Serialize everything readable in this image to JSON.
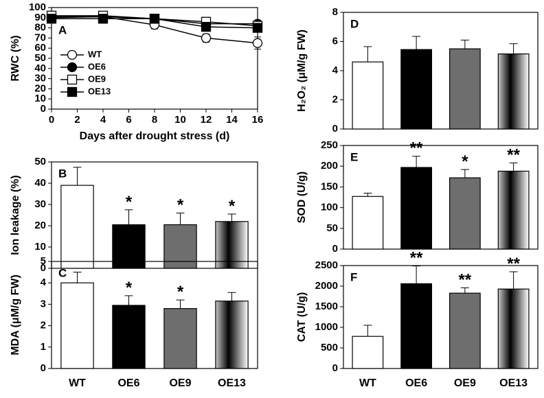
{
  "chart_data": [
    {
      "type": "line",
      "label": "A",
      "ylabel": "RWC (%)",
      "xlabel": "Days after drought stress (d)",
      "x": [
        0,
        4,
        8,
        12,
        16
      ],
      "xlim": [
        0,
        16
      ],
      "xticks": [
        0,
        2,
        4,
        6,
        8,
        10,
        12,
        14,
        16
      ],
      "ylim": [
        0,
        100
      ],
      "yticks": [
        0,
        10,
        20,
        30,
        40,
        50,
        60,
        70,
        80,
        90,
        100
      ],
      "series": [
        {
          "name": "WT",
          "color": "#000000",
          "marker": "circle",
          "filled": false,
          "values": [
            91,
            91,
            83,
            70,
            65
          ],
          "errors": [
            2,
            2,
            4,
            4,
            6
          ]
        },
        {
          "name": "OE6",
          "color": "#000000",
          "marker": "circle",
          "filled": true,
          "values": [
            90,
            91,
            89,
            84,
            84
          ],
          "errors": [
            2,
            2,
            2,
            3,
            3
          ]
        },
        {
          "name": "OE9",
          "color": "#000000",
          "marker": "square",
          "filled": false,
          "values": [
            92,
            92,
            89,
            86,
            82
          ],
          "errors": [
            2,
            2,
            2,
            3,
            3
          ]
        },
        {
          "name": "OE13",
          "color": "#000000",
          "marker": "square",
          "filled": true,
          "values": [
            89,
            89,
            89,
            81,
            80
          ],
          "errors": [
            2,
            2,
            3,
            3,
            3
          ]
        }
      ]
    },
    {
      "type": "bar",
      "label": "B",
      "ylabel": "Ion leakage (%)",
      "categories": [
        null,
        null,
        null,
        null
      ],
      "values": [
        39,
        20.5,
        20.5,
        22
      ],
      "errors": [
        8.5,
        7,
        5.5,
        3.5
      ],
      "significance": [
        null,
        "*",
        "*",
        "*"
      ],
      "colors": [
        "#ffffff",
        "#000000",
        "#6e6e6e",
        "gradient"
      ],
      "ylim": [
        0,
        50
      ],
      "yticks": [
        0,
        10,
        20,
        30,
        40,
        50
      ]
    },
    {
      "type": "bar",
      "label": "C",
      "ylabel": "MDA (μM/g FW)",
      "categories": [
        "WT",
        "OE6",
        "OE9",
        "OE13"
      ],
      "values": [
        4.0,
        2.95,
        2.8,
        3.15
      ],
      "errors": [
        0.5,
        0.45,
        0.4,
        0.4
      ],
      "significance": [
        null,
        "*",
        "*",
        null
      ],
      "colors": [
        "#ffffff",
        "#000000",
        "#6e6e6e",
        "gradient"
      ],
      "ylim": [
        0,
        5
      ],
      "yticks": [
        0,
        1,
        2,
        3,
        4,
        5
      ]
    },
    {
      "type": "bar",
      "label": "D",
      "ylabel": "H₂O₂ (μM/g FW)",
      "categories": [
        null,
        null,
        null,
        null
      ],
      "values": [
        4.6,
        5.45,
        5.5,
        5.15
      ],
      "errors": [
        1.05,
        0.9,
        0.6,
        0.7
      ],
      "significance": [
        null,
        null,
        null,
        null
      ],
      "colors": [
        "#ffffff",
        "#000000",
        "#6e6e6e",
        "gradient"
      ],
      "ylim": [
        0,
        8
      ],
      "yticks": [
        0,
        2,
        4,
        6,
        8
      ]
    },
    {
      "type": "bar",
      "label": "E",
      "ylabel": "SOD (U/g)",
      "categories": [
        null,
        null,
        null,
        null
      ],
      "values": [
        127,
        197,
        172,
        188
      ],
      "errors": [
        8,
        27,
        20,
        20
      ],
      "significance": [
        null,
        "**",
        "*",
        "**"
      ],
      "colors": [
        "#ffffff",
        "#000000",
        "#6e6e6e",
        "gradient"
      ],
      "ylim": [
        0,
        250
      ],
      "yticks": [
        0,
        50,
        100,
        150,
        200,
        250
      ]
    },
    {
      "type": "bar",
      "label": "F",
      "ylabel": "CAT (U/g)",
      "categories": [
        "WT",
        "OE6",
        "OE9",
        "OE13"
      ],
      "values": [
        780,
        2060,
        1830,
        1930
      ],
      "errors": [
        270,
        430,
        130,
        420
      ],
      "significance": [
        null,
        "**",
        "**",
        "**"
      ],
      "colors": [
        "#ffffff",
        "#000000",
        "#6e6e6e",
        "gradient"
      ],
      "ylim": [
        0,
        2500
      ],
      "yticks": [
        0,
        500,
        1000,
        1500,
        2000,
        2500
      ]
    }
  ]
}
